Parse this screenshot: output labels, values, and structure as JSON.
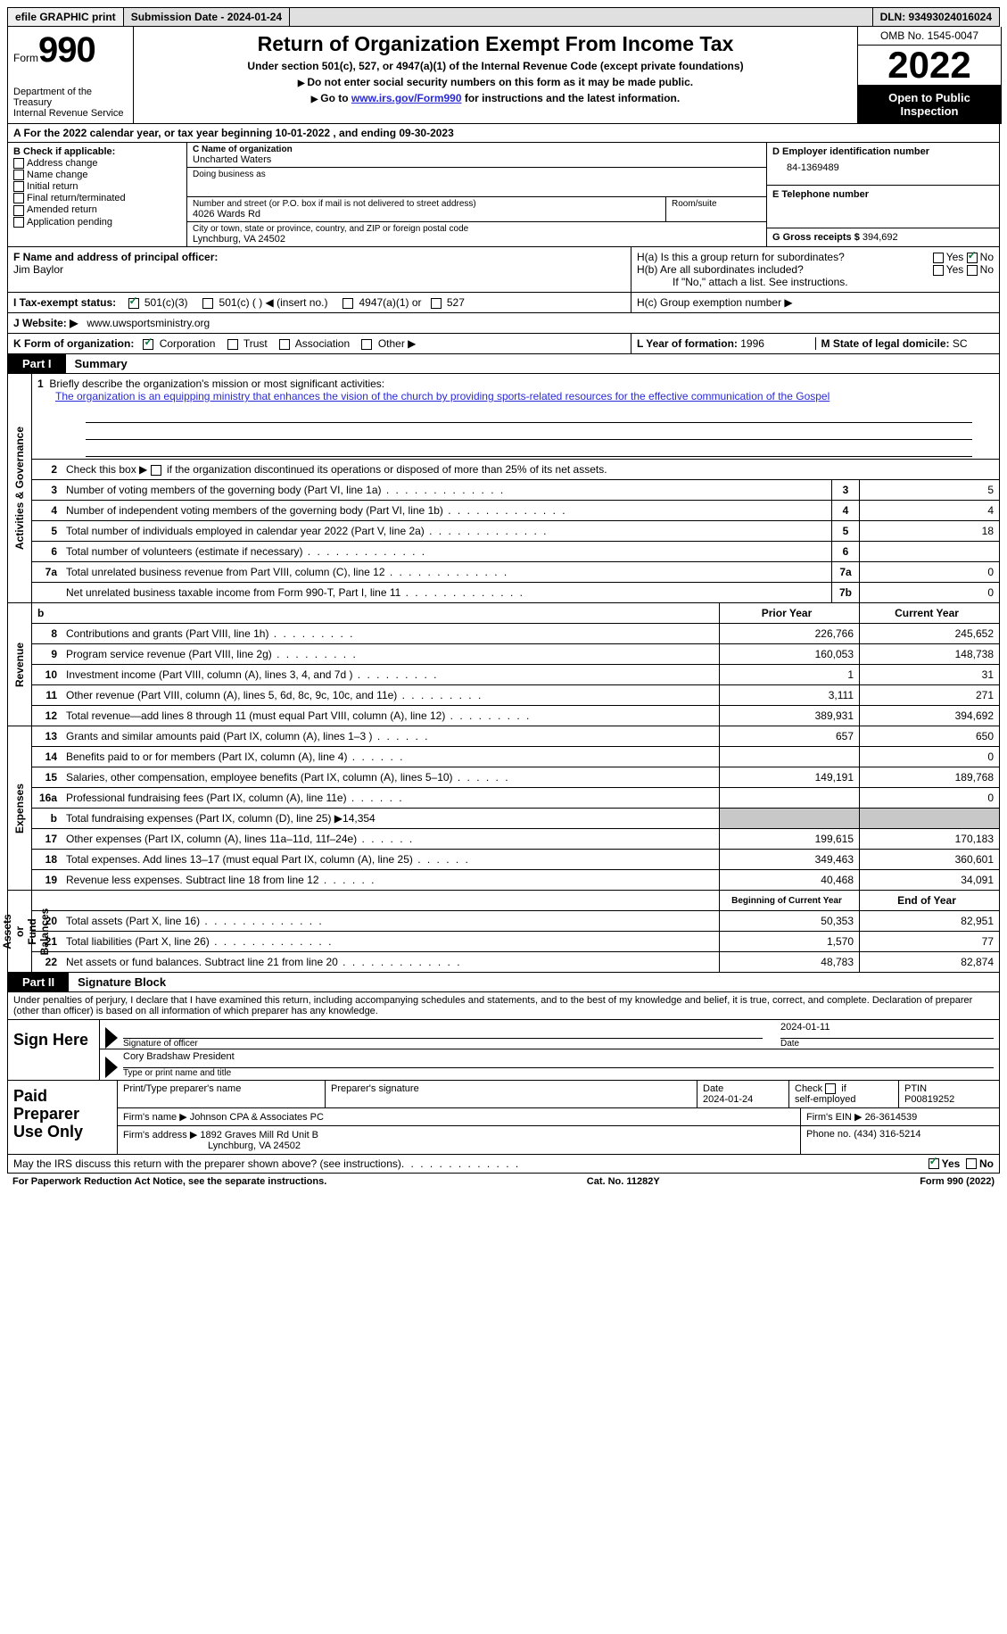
{
  "topbar": {
    "efile": "efile GRAPHIC print",
    "submission": "Submission Date - 2024-01-24",
    "dln": "DLN: 93493024016024"
  },
  "header": {
    "form_word": "Form",
    "form_num": "990",
    "title": "Return of Organization Exempt From Income Tax",
    "subtitle": "Under section 501(c), 527, or 4947(a)(1) of the Internal Revenue Code (except private foundations)",
    "note1": "Do not enter social security numbers on this form as it may be made public.",
    "note2_pre": "Go to ",
    "note2_link": "www.irs.gov/Form990",
    "note2_post": " for instructions and the latest information.",
    "dept": "Department of the Treasury\nInternal Revenue Service",
    "omb": "OMB No. 1545-0047",
    "year": "2022",
    "inspect": "Open to Public Inspection"
  },
  "period": {
    "line": "A For the 2022 calendar year, or tax year beginning 10-01-2022    , and ending 09-30-2023"
  },
  "boxB": {
    "label": "B Check if applicable:",
    "opts": [
      "Address change",
      "Name change",
      "Initial return",
      "Final return/terminated",
      "Amended return",
      "Application pending"
    ]
  },
  "boxC": {
    "name_label": "C Name of organization",
    "name": "Uncharted Waters",
    "dba_label": "Doing business as",
    "addr_label": "Number and street (or P.O. box if mail is not delivered to street address)",
    "room_label": "Room/suite",
    "addr": "4026 Wards Rd",
    "city_label": "City or town, state or province, country, and ZIP or foreign postal code",
    "city": "Lynchburg, VA  24502"
  },
  "boxD": {
    "label": "D Employer identification number",
    "val": "84-1369489"
  },
  "boxE": {
    "label": "E Telephone number",
    "val": ""
  },
  "boxG": {
    "label": "G Gross receipts $",
    "val": "394,692"
  },
  "boxF": {
    "label": "F Name and address of principal officer:",
    "val": "Jim Baylor"
  },
  "boxH": {
    "a": "H(a)  Is this a group return for subordinates?",
    "b": "H(b)  Are all subordinates included?",
    "b_note": "If \"No,\" attach a list. See instructions.",
    "c": "H(c)  Group exemption number ▶"
  },
  "boxI": {
    "label": "I   Tax-exempt status:",
    "opts": [
      "501(c)(3)",
      "501(c) (  ) ◀ (insert no.)",
      "4947(a)(1) or",
      "527"
    ]
  },
  "boxJ": {
    "label": "J   Website: ▶",
    "val": "www.uwsportsministry.org"
  },
  "boxK": {
    "label": "K Form of organization:",
    "opts": [
      "Corporation",
      "Trust",
      "Association",
      "Other ▶"
    ]
  },
  "boxL": {
    "label": "L Year of formation: ",
    "val": "1996"
  },
  "boxM": {
    "label": "M State of legal domicile: ",
    "val": "SC"
  },
  "part1": {
    "num": "Part I",
    "title": "Summary"
  },
  "summary": {
    "line1_label": "Briefly describe the organization's mission or most significant activities:",
    "line1_val": "The organization is an equipping ministry that enhances the vision of the church by providing sports-related resources for the effective communication of the Gospel",
    "line2": "Check this box ▶        if the organization discontinued its operations or disposed of more than 25% of its net assets.",
    "rows_ag": [
      {
        "n": "3",
        "d": "Number of voting members of the governing body (Part VI, line 1a)",
        "box": "3",
        "v": "5"
      },
      {
        "n": "4",
        "d": "Number of independent voting members of the governing body (Part VI, line 1b)",
        "box": "4",
        "v": "4"
      },
      {
        "n": "5",
        "d": "Total number of individuals employed in calendar year 2022 (Part V, line 2a)",
        "box": "5",
        "v": "18"
      },
      {
        "n": "6",
        "d": "Total number of volunteers (estimate if necessary)",
        "box": "6",
        "v": ""
      },
      {
        "n": "7a",
        "d": "Total unrelated business revenue from Part VIII, column (C), line 12",
        "box": "7a",
        "v": "0"
      },
      {
        "n": "",
        "d": "Net unrelated business taxable income from Form 990-T, Part I, line 11",
        "box": "7b",
        "v": "0"
      }
    ],
    "col_hdr1": "Prior Year",
    "col_hdr2": "Current Year",
    "rev": [
      {
        "n": "8",
        "d": "Contributions and grants (Part VIII, line 1h)",
        "p": "226,766",
        "c": "245,652"
      },
      {
        "n": "9",
        "d": "Program service revenue (Part VIII, line 2g)",
        "p": "160,053",
        "c": "148,738"
      },
      {
        "n": "10",
        "d": "Investment income (Part VIII, column (A), lines 3, 4, and 7d )",
        "p": "1",
        "c": "31"
      },
      {
        "n": "11",
        "d": "Other revenue (Part VIII, column (A), lines 5, 6d, 8c, 9c, 10c, and 11e)",
        "p": "3,111",
        "c": "271"
      },
      {
        "n": "12",
        "d": "Total revenue—add lines 8 through 11 (must equal Part VIII, column (A), line 12)",
        "p": "389,931",
        "c": "394,692"
      }
    ],
    "exp": [
      {
        "n": "13",
        "d": "Grants and similar amounts paid (Part IX, column (A), lines 1–3 )",
        "p": "657",
        "c": "650"
      },
      {
        "n": "14",
        "d": "Benefits paid to or for members (Part IX, column (A), line 4)",
        "p": "",
        "c": "0"
      },
      {
        "n": "15",
        "d": "Salaries, other compensation, employee benefits (Part IX, column (A), lines 5–10)",
        "p": "149,191",
        "c": "189,768"
      },
      {
        "n": "16a",
        "d": "Professional fundraising fees (Part IX, column (A), line 11e)",
        "p": "",
        "c": "0"
      },
      {
        "n": "b",
        "d": "Total fundraising expenses (Part IX, column (D), line 25) ▶14,354",
        "p": "SHADE",
        "c": "SHADE"
      },
      {
        "n": "17",
        "d": "Other expenses (Part IX, column (A), lines 11a–11d, 11f–24e)",
        "p": "199,615",
        "c": "170,183"
      },
      {
        "n": "18",
        "d": "Total expenses. Add lines 13–17 (must equal Part IX, column (A), line 25)",
        "p": "349,463",
        "c": "360,601"
      },
      {
        "n": "19",
        "d": "Revenue less expenses. Subtract line 18 from line 12",
        "p": "40,468",
        "c": "34,091"
      }
    ],
    "na_hdr1": "Beginning of Current Year",
    "na_hdr2": "End of Year",
    "na": [
      {
        "n": "20",
        "d": "Total assets (Part X, line 16)",
        "p": "50,353",
        "c": "82,951"
      },
      {
        "n": "21",
        "d": "Total liabilities (Part X, line 26)",
        "p": "1,570",
        "c": "77"
      },
      {
        "n": "22",
        "d": "Net assets or fund balances. Subtract line 21 from line 20",
        "p": "48,783",
        "c": "82,874"
      }
    ],
    "side_ag": "Activities & Governance",
    "side_rev": "Revenue",
    "side_exp": "Expenses",
    "side_na": "Net Assets or\nFund Balances"
  },
  "part2": {
    "num": "Part II",
    "title": "Signature Block"
  },
  "sig": {
    "decl": "Under penalties of perjury, I declare that I have examined this return, including accompanying schedules and statements, and to the best of my knowledge and belief, it is true, correct, and complete. Declaration of preparer (other than officer) is based on all information of which preparer has any knowledge.",
    "sign_here": "Sign Here",
    "officer_sig_lbl": "Signature of officer",
    "date_val": "2024-01-11",
    "date_lbl": "Date",
    "officer_name": "Cory Bradshaw  President",
    "officer_name_lbl": "Type or print name and title"
  },
  "prep": {
    "title": "Paid Preparer Use Only",
    "r1": {
      "c1_lbl": "Print/Type preparer's name",
      "c1": "",
      "c2_lbl": "Preparer's signature",
      "c2": "",
      "c3_lbl": "Date",
      "c3": "2024-01-24",
      "c4_lbl": "Check        if self-employed",
      "c5_lbl": "PTIN",
      "c5": "P00819252"
    },
    "r2": {
      "lbl": "Firm's name    ▶",
      "val": "Johnson CPA & Associates PC",
      "ein_lbl": "Firm's EIN ▶",
      "ein": "26-3614539"
    },
    "r3": {
      "lbl": "Firm's address ▶",
      "val": "1892 Graves Mill Rd Unit B",
      "city": "Lynchburg, VA  24502",
      "ph_lbl": "Phone no.",
      "ph": "(434) 316-5214"
    }
  },
  "discuss": {
    "q": "May the IRS discuss this return with the preparer shown above? (see instructions)",
    "yes": "Yes",
    "no": "No"
  },
  "footer": {
    "left": "For Paperwork Reduction Act Notice, see the separate instructions.",
    "mid": "Cat. No. 11282Y",
    "right": "Form 990 (2022)"
  }
}
